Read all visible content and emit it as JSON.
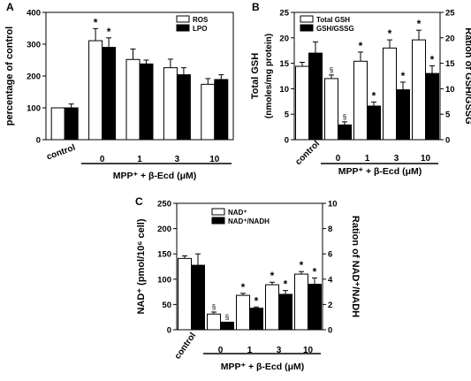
{
  "chart_data": [
    {
      "panel": "A",
      "type": "bar",
      "categories": [
        "control",
        "0",
        "1",
        "3",
        "10"
      ],
      "group_label": "MPP⁺ + β-Ecd (μM)",
      "ylabel": "percentage of control",
      "ylim": [
        0,
        400
      ],
      "yticks": [
        "0",
        "100",
        "200",
        "300",
        "400"
      ],
      "series": [
        {
          "name": "ROS",
          "values": [
            100,
            311,
            252,
            226,
            174
          ],
          "err": [
            0,
            38,
            33,
            27,
            18
          ],
          "sig": [
            "",
            "*",
            "",
            "",
            ""
          ]
        },
        {
          "name": "LPO",
          "values": [
            100,
            290,
            238,
            204,
            189
          ],
          "err": [
            12,
            30,
            12,
            22,
            15
          ],
          "sig": [
            "",
            "*",
            "",
            "",
            ""
          ]
        }
      ]
    },
    {
      "panel": "B",
      "type": "bar",
      "categories": [
        "control",
        "0",
        "1",
        "3",
        "10"
      ],
      "group_label": "MPP⁺ + β-Ecd (μM)",
      "ylabel": "Total GSH",
      "ylabel2": "(nmoles/mg protein)",
      "y2label": "Ration of GSH/GSSG",
      "ylim": [
        0,
        25
      ],
      "yticks": [
        "0",
        "5",
        "10",
        "15",
        "20",
        "25"
      ],
      "y2lim": [
        0,
        25
      ],
      "y2ticks": [
        "0",
        "5",
        "10",
        "15",
        "20",
        "25"
      ],
      "series": [
        {
          "name": "Total GSH",
          "values": [
            14.4,
            12.0,
            15.4,
            18.0,
            19.6
          ],
          "err": [
            0.8,
            0.7,
            1.8,
            1.6,
            1.9
          ],
          "sig": [
            "",
            "§",
            "*",
            "*",
            "*"
          ]
        },
        {
          "name": "GSH/GSSG",
          "values": [
            17.0,
            2.9,
            6.6,
            9.8,
            13.0
          ],
          "err": [
            2.2,
            0.6,
            0.8,
            1.5,
            1.5
          ],
          "sig": [
            "",
            "§",
            "*",
            "*",
            "*"
          ]
        }
      ]
    },
    {
      "panel": "C",
      "type": "bar",
      "categories": [
        "control",
        "0",
        "1",
        "3",
        "10"
      ],
      "group_label": "MPP⁺ + β-Ecd (μM)",
      "ylabel": "NAD⁺ (pmol/10⁶ cell)",
      "y2label": "Ration of NAD⁺/NADH",
      "ylim": [
        0,
        250
      ],
      "yticks": [
        "0",
        "50",
        "100",
        "150",
        "200",
        "250"
      ],
      "y2lim": [
        0,
        10
      ],
      "y2ticks": [
        "0",
        "2",
        "4",
        "6",
        "8",
        "10"
      ],
      "series": [
        {
          "name": "NAD⁺",
          "values": [
            141,
            31,
            68,
            89,
            110
          ],
          "err": [
            5,
            4,
            4,
            5,
            5
          ],
          "sig": [
            "",
            "§",
            "*",
            "*",
            "*"
          ]
        },
        {
          "name": "NAD⁺/NADH",
          "values": [
            5.1,
            0.6,
            1.7,
            2.8,
            3.6
          ],
          "err": [
            0.9,
            0,
            0.1,
            0.3,
            0.5
          ],
          "sig": [
            "",
            "§",
            "*",
            "*",
            "*"
          ]
        }
      ]
    }
  ],
  "panel_letters": [
    "A",
    "B",
    "C"
  ]
}
